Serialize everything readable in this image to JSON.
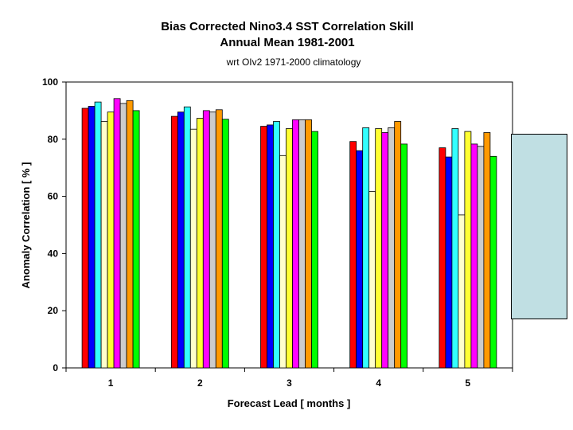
{
  "chart_data": {
    "type": "bar",
    "title": "Bias Corrected Nino3.4 SST Correlation Skill",
    "title_line2": "Annual Mean 1981-2001",
    "subtitle": "wrt OIv2 1971-2000 climatology",
    "xlabel": "Forecast Lead [ months ]",
    "ylabel": "Anomaly Correlation [ % ]",
    "ylim": [
      0,
      100
    ],
    "yticks": [
      "0",
      "20",
      "40",
      "60",
      "80",
      "100"
    ],
    "categories": [
      "1",
      "2",
      "3",
      "4",
      "5"
    ],
    "grid": false,
    "legend_placement": "right",
    "series": [
      {
        "color": "#ff0000",
        "values": [
          90.8,
          88.0,
          84.5,
          79.2,
          77.0
        ]
      },
      {
        "color": "#0000ff",
        "values": [
          91.5,
          89.5,
          85.0,
          76.0,
          73.8
        ]
      },
      {
        "color": "#33ffff",
        "values": [
          93.0,
          91.3,
          86.2,
          84.0,
          83.7
        ]
      },
      {
        "color": "#ffffcc",
        "values": [
          86.2,
          83.5,
          74.3,
          61.7,
          53.5
        ]
      },
      {
        "color": "#ffff33",
        "values": [
          89.5,
          87.3,
          83.7,
          83.7,
          82.7
        ]
      },
      {
        "color": "#ff00ff",
        "values": [
          94.2,
          90.0,
          86.8,
          82.3,
          78.3
        ]
      },
      {
        "color": "#cccccc",
        "values": [
          92.5,
          89.5,
          86.8,
          84.0,
          77.5
        ]
      },
      {
        "color": "#ff9900",
        "values": [
          93.5,
          90.3,
          86.8,
          86.2,
          82.3
        ]
      },
      {
        "color": "#00ff00",
        "values": [
          90.0,
          87.0,
          82.7,
          78.3,
          74.0
        ]
      }
    ]
  }
}
